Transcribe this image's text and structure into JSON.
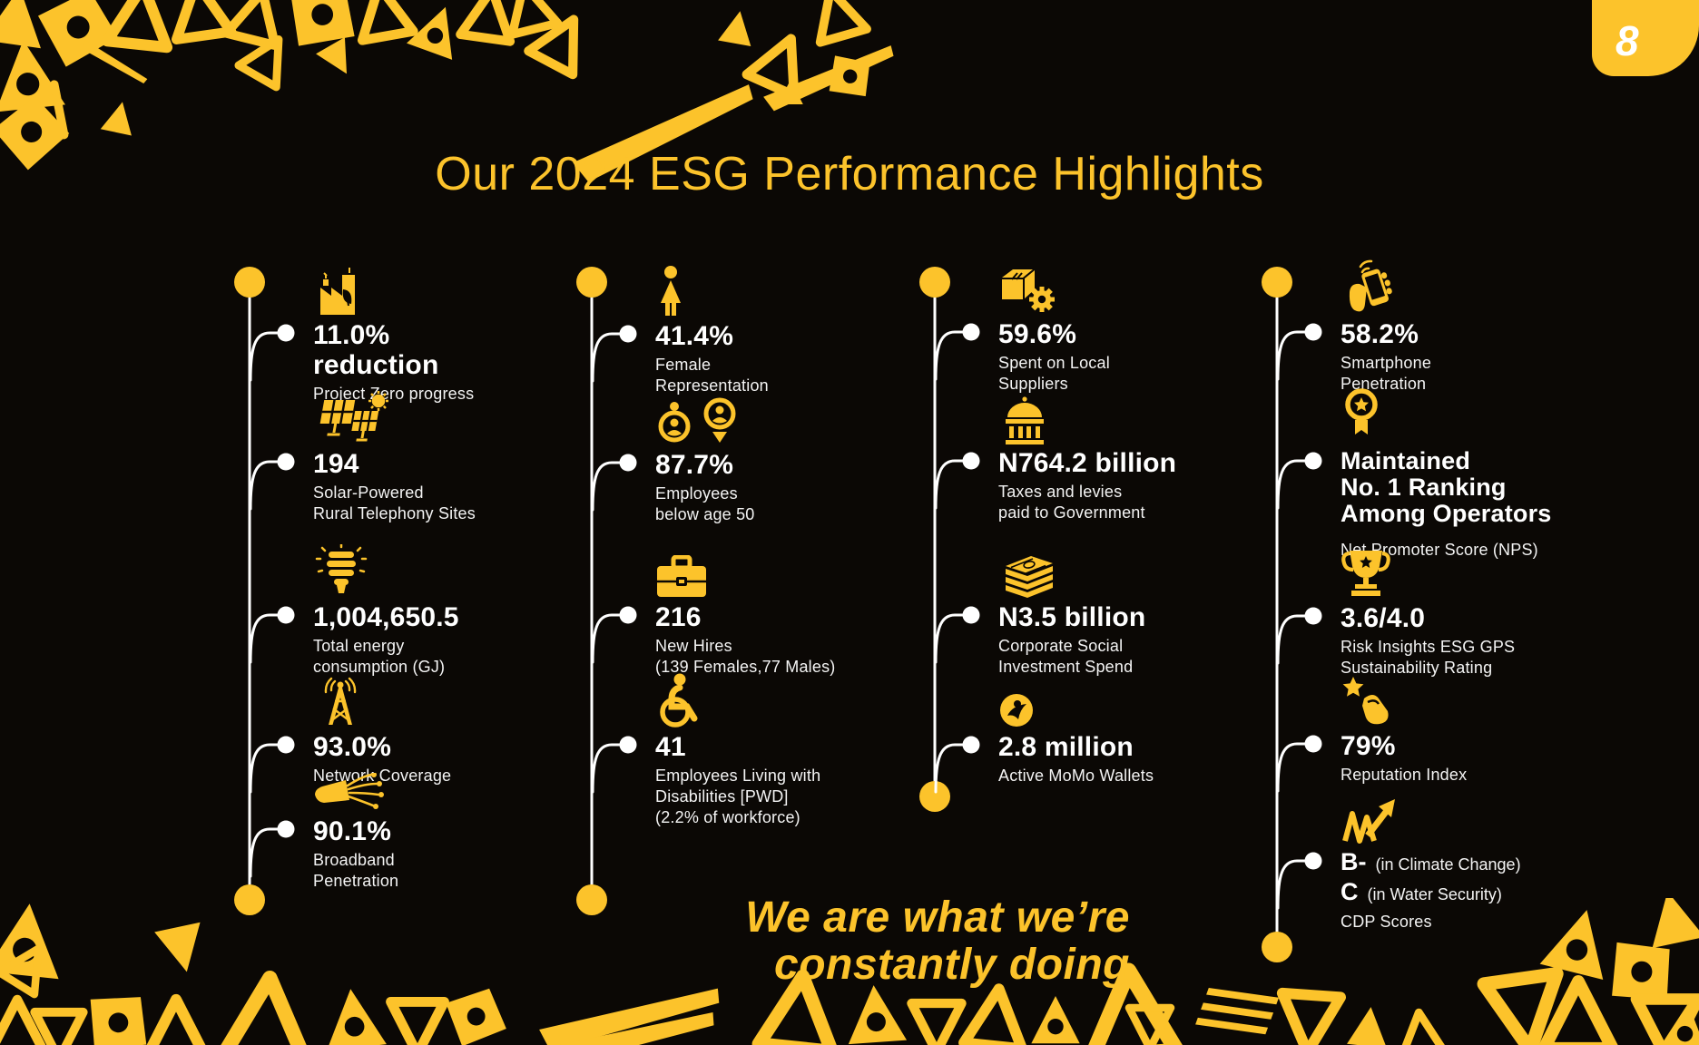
{
  "slide": {
    "page_number": "8",
    "title": "Our 2024 ESG Performance Highlights",
    "tagline_line1": "We are what we’re",
    "tagline_line2": "constantly doing"
  },
  "colors": {
    "yellow": "#FCC32B",
    "background": "#0B0805",
    "text": "#FFFFFF"
  },
  "columns": [
    {
      "name": "environment-energy",
      "items": [
        {
          "icon": "factory-emissions-icon",
          "value_lines": [
            "11.0%",
            "reduction"
          ],
          "sub_lines": [
            "Project Zero progress"
          ]
        },
        {
          "icon": "solar-panels-icon",
          "value_lines": [
            "194"
          ],
          "sub_lines": [
            "Solar-Powered",
            "Rural Telephony Sites"
          ]
        },
        {
          "icon": "cfl-bulb-icon",
          "value_lines": [
            "1,004,650.5"
          ],
          "sub_lines": [
            "Total energy",
            "consumption (GJ)"
          ]
        },
        {
          "icon": "network-tower-icon",
          "value_lines": [
            "93.0%"
          ],
          "sub_lines": [
            "Network Coverage"
          ]
        },
        {
          "icon": "fiber-optic-icon",
          "value_lines": [
            "90.1%"
          ],
          "sub_lines": [
            "Broadband",
            "Penetration"
          ]
        }
      ]
    },
    {
      "name": "people-workforce",
      "items": [
        {
          "icon": "female-person-icon",
          "value_lines": [
            "41.4%"
          ],
          "sub_lines": [
            "Female",
            "Representation"
          ]
        },
        {
          "icon": "gender-symbols-icon",
          "value_lines": [
            "87.7%"
          ],
          "sub_lines": [
            "Employees",
            "below age 50"
          ]
        },
        {
          "icon": "briefcase-icon",
          "value_lines": [
            "216"
          ],
          "sub_lines": [
            "New Hires",
            "(139 Females,77 Males)"
          ]
        },
        {
          "icon": "wheelchair-icon",
          "value_lines": [
            "41"
          ],
          "sub_lines": [
            "Employees Living with",
            "Disabilities [PWD]",
            "(2.2% of workforce)"
          ]
        }
      ]
    },
    {
      "name": "economy-community",
      "items": [
        {
          "icon": "package-gear-icon",
          "value_lines": [
            "59.6%"
          ],
          "sub_lines": [
            "Spent on Local",
            "Suppliers"
          ]
        },
        {
          "icon": "government-building-icon",
          "value_lines": [
            "N764.2 billion"
          ],
          "sub_lines": [
            "Taxes and levies",
            "paid to Government"
          ]
        },
        {
          "icon": "cash-stack-icon",
          "value_lines": [
            "N3.5 billion"
          ],
          "sub_lines": [
            "Corporate Social",
            "Investment Spend"
          ]
        },
        {
          "icon": "momo-wallet-icon",
          "value_lines": [
            "2.8 million"
          ],
          "sub_lines": [
            "Active MoMo Wallets"
          ]
        }
      ]
    },
    {
      "name": "reputation-ratings",
      "items": [
        {
          "icon": "smartphone-hand-icon",
          "value_lines": [
            "58.2%"
          ],
          "sub_lines": [
            "Smartphone",
            "Penetration"
          ]
        },
        {
          "icon": "medal-icon",
          "value_lines": [
            "Maintained",
            "No. 1 Ranking",
            "Among Operators"
          ],
          "sub_lines": [
            "Net Promoter Score (NPS)"
          ],
          "spaced_sub": true
        },
        {
          "icon": "trophy-icon",
          "value_lines": [
            "3.6/4.0"
          ],
          "sub_lines": [
            "Risk Insights ESG GPS",
            "Sustainability Rating"
          ]
        },
        {
          "icon": "hand-star-icon",
          "value_lines": [
            "79%"
          ],
          "sub_lines": [
            "Reputation Index"
          ]
        },
        {
          "icon": "chart-growth-icon",
          "score_rows": [
            {
              "score": "B-",
              "label": "(in Climate Change)"
            },
            {
              "score": "C",
              "label": "(in Water Security)"
            }
          ],
          "sub_lines": [
            "CDP Scores"
          ]
        }
      ]
    }
  ]
}
